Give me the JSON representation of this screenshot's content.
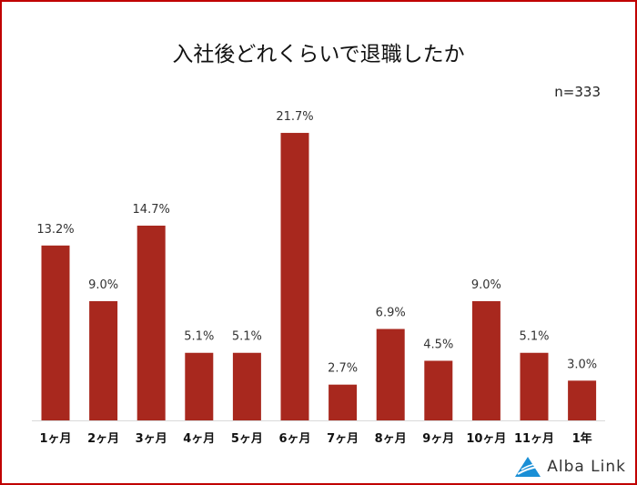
{
  "chart_data": {
    "type": "bar",
    "title": "入社後どれくらいで退職したか",
    "note": "n=333",
    "categories": [
      "1ヶ月",
      "2ヶ月",
      "3ヶ月",
      "4ヶ月",
      "5ヶ月",
      "6ヶ月",
      "7ヶ月",
      "8ヶ月",
      "9ヶ月",
      "10ヶ月",
      "11ヶ月",
      "1年"
    ],
    "values": [
      13.2,
      9.0,
      14.7,
      5.1,
      5.1,
      21.7,
      2.7,
      6.9,
      4.5,
      9.0,
      5.1,
      3.0
    ],
    "data_labels": [
      "13.2%",
      "9.0%",
      "14.7%",
      "5.1%",
      "5.1%",
      "21.7%",
      "2.7%",
      "6.9%",
      "4.5%",
      "9.0%",
      "5.1%",
      "3.0%"
    ],
    "xlabel": "",
    "ylabel": "",
    "ylim": [
      0,
      22
    ],
    "grid": false,
    "bar_color": "#a8281e"
  },
  "brand": {
    "name": "Alba Link"
  }
}
